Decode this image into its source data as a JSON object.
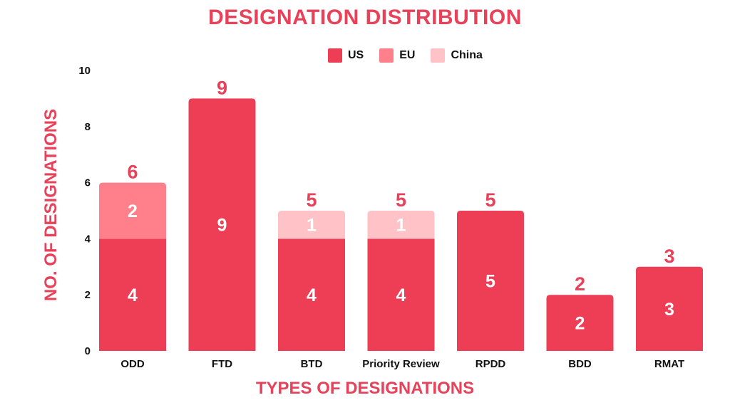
{
  "colors": {
    "accent": "#e8415a",
    "US": "#ee3e55",
    "EU": "#ff7f8b",
    "China": "#ffc2c7"
  },
  "chart_data": {
    "type": "bar",
    "stacked": true,
    "title": "DESIGNATION DISTRIBUTION",
    "xlabel": "TYPES OF DESIGNATIONS",
    "ylabel": "NO. OF DESIGNATIONS",
    "ylim": [
      0,
      10
    ],
    "yticks": [
      "0",
      "2",
      "4",
      "6",
      "8",
      "10"
    ],
    "grid": false,
    "legend_position": "top",
    "categories": [
      "ODD",
      "FTD",
      "BTD",
      "Priority Review",
      "RPDD",
      "BDD",
      "RMAT"
    ],
    "series": [
      {
        "name": "US",
        "values": [
          4,
          9,
          4,
          4,
          5,
          2,
          3
        ]
      },
      {
        "name": "EU",
        "values": [
          2,
          0,
          0,
          0,
          0,
          0,
          0
        ]
      },
      {
        "name": "China",
        "values": [
          0,
          0,
          1,
          1,
          0,
          0,
          0
        ]
      }
    ],
    "totals": [
      6,
      9,
      5,
      5,
      5,
      2,
      3
    ]
  }
}
